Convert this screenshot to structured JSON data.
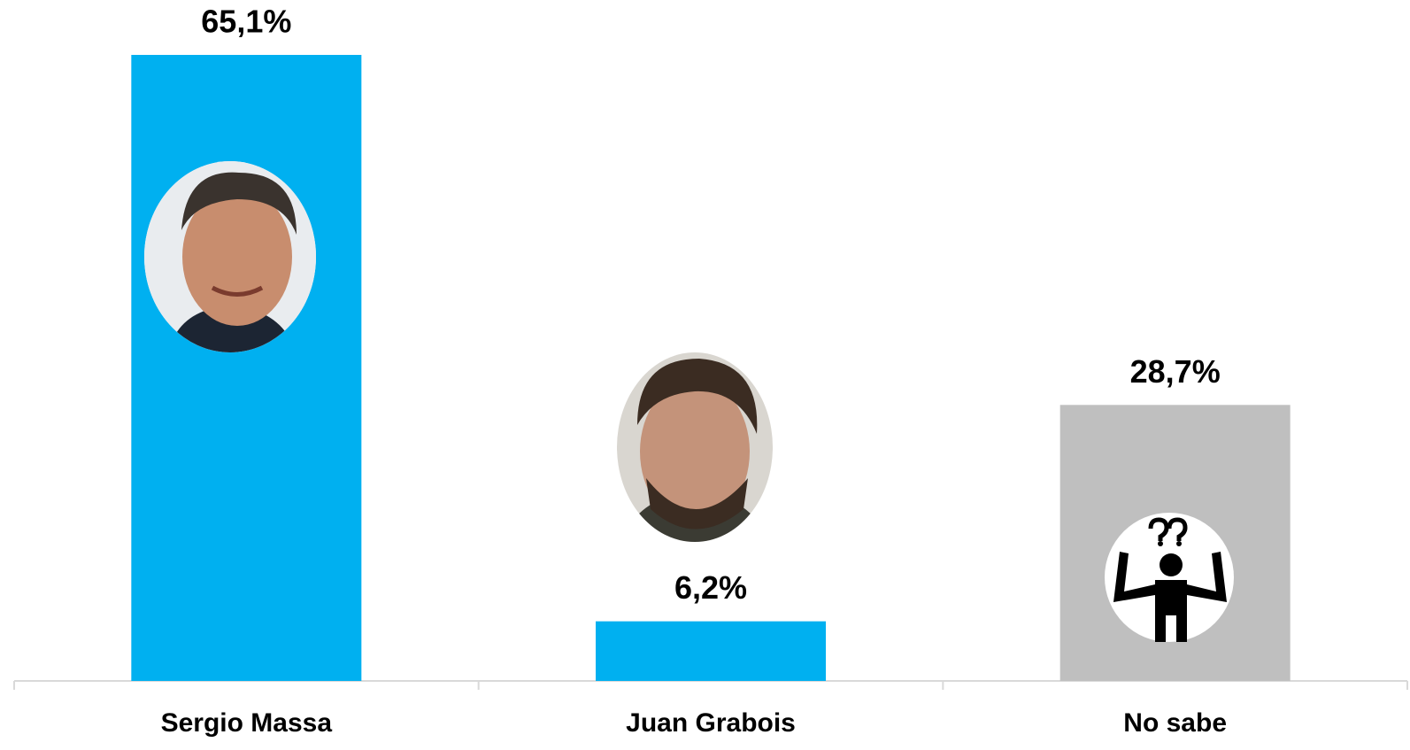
{
  "chart_data": {
    "type": "bar",
    "categories": [
      "Sergio Massa",
      "Juan Grabois",
      "No sabe"
    ],
    "values": [
      65.1,
      6.2,
      28.7
    ],
    "value_labels": [
      "65,1%",
      "6,2%",
      "28,7%"
    ],
    "colors": [
      "#00b0f0",
      "#00b0f0",
      "#bfbfbf"
    ]
  }
}
